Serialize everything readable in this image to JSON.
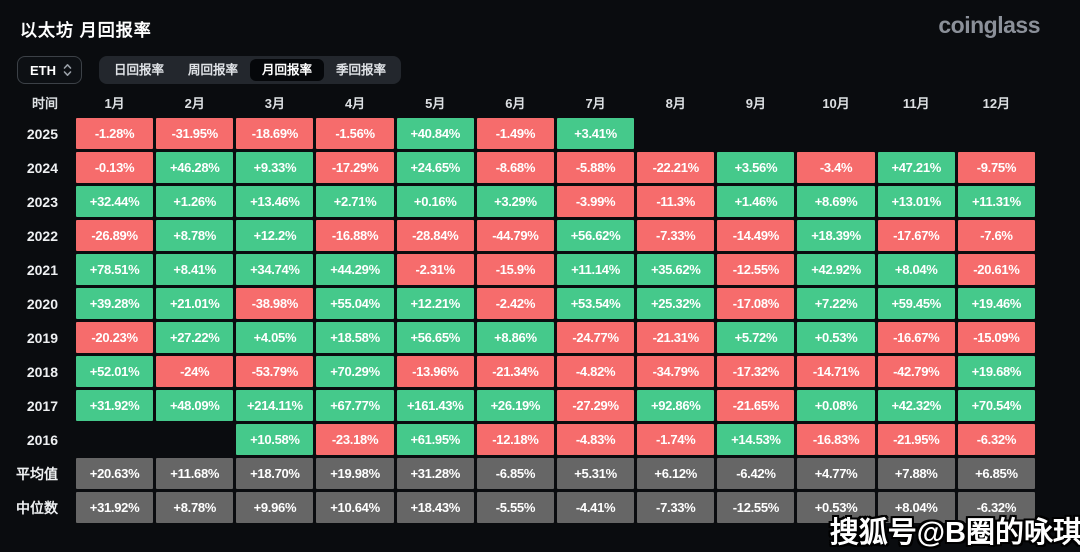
{
  "header": {
    "title": "以太坊 月回报率",
    "brand": "coinglass"
  },
  "controls": {
    "symbol_select": {
      "value": "ETH"
    },
    "tabs": [
      {
        "label": "日回报率",
        "active": false
      },
      {
        "label": "周回报率",
        "active": false
      },
      {
        "label": "月回报率",
        "active": true
      },
      {
        "label": "季回报率",
        "active": false
      }
    ]
  },
  "table": {
    "corner_header": "时间",
    "month_headers": [
      "1月",
      "2月",
      "3月",
      "4月",
      "5月",
      "6月",
      "7月",
      "8月",
      "9月",
      "10月",
      "11月",
      "12月"
    ],
    "rows": [
      {
        "label": "2025",
        "type": "year",
        "values": [
          "-1.28%",
          "-31.95%",
          "-18.69%",
          "-1.56%",
          "+40.84%",
          "-1.49%",
          "+3.41%",
          null,
          null,
          null,
          null,
          null
        ]
      },
      {
        "label": "2024",
        "type": "year",
        "values": [
          "-0.13%",
          "+46.28%",
          "+9.33%",
          "-17.29%",
          "+24.65%",
          "-8.68%",
          "-5.88%",
          "-22.21%",
          "+3.56%",
          "-3.4%",
          "+47.21%",
          "-9.75%"
        ]
      },
      {
        "label": "2023",
        "type": "year",
        "values": [
          "+32.44%",
          "+1.26%",
          "+13.46%",
          "+2.71%",
          "+0.16%",
          "+3.29%",
          "-3.99%",
          "-11.3%",
          "+1.46%",
          "+8.69%",
          "+13.01%",
          "+11.31%"
        ]
      },
      {
        "label": "2022",
        "type": "year",
        "values": [
          "-26.89%",
          "+8.78%",
          "+12.2%",
          "-16.88%",
          "-28.84%",
          "-44.79%",
          "+56.62%",
          "-7.33%",
          "-14.49%",
          "+18.39%",
          "-17.67%",
          "-7.6%"
        ]
      },
      {
        "label": "2021",
        "type": "year",
        "values": [
          "+78.51%",
          "+8.41%",
          "+34.74%",
          "+44.29%",
          "-2.31%",
          "-15.9%",
          "+11.14%",
          "+35.62%",
          "-12.55%",
          "+42.92%",
          "+8.04%",
          "-20.61%"
        ]
      },
      {
        "label": "2020",
        "type": "year",
        "values": [
          "+39.28%",
          "+21.01%",
          "-38.98%",
          "+55.04%",
          "+12.21%",
          "-2.42%",
          "+53.54%",
          "+25.32%",
          "-17.08%",
          "+7.22%",
          "+59.45%",
          "+19.46%"
        ]
      },
      {
        "label": "2019",
        "type": "year",
        "values": [
          "-20.23%",
          "+27.22%",
          "+4.05%",
          "+18.58%",
          "+56.65%",
          "+8.86%",
          "-24.77%",
          "-21.31%",
          "+5.72%",
          "+0.53%",
          "-16.67%",
          "-15.09%"
        ]
      },
      {
        "label": "2018",
        "type": "year",
        "values": [
          "+52.01%",
          "-24%",
          "-53.79%",
          "+70.29%",
          "-13.96%",
          "-21.34%",
          "-4.82%",
          "-34.79%",
          "-17.32%",
          "-14.71%",
          "-42.79%",
          "+19.68%"
        ]
      },
      {
        "label": "2017",
        "type": "year",
        "values": [
          "+31.92%",
          "+48.09%",
          "+214.11%",
          "+67.77%",
          "+161.43%",
          "+26.19%",
          "-27.29%",
          "+92.86%",
          "-21.65%",
          "+0.08%",
          "+42.32%",
          "+70.54%"
        ]
      },
      {
        "label": "2016",
        "type": "year",
        "values": [
          null,
          null,
          "+10.58%",
          "-23.18%",
          "+61.95%",
          "-12.18%",
          "-4.83%",
          "-1.74%",
          "+14.53%",
          "-16.83%",
          "-21.95%",
          "-6.32%"
        ]
      },
      {
        "label": "平均值",
        "type": "summary",
        "values": [
          "+20.63%",
          "+11.68%",
          "+18.70%",
          "+19.98%",
          "+31.28%",
          "-6.85%",
          "+5.31%",
          "+6.12%",
          "-6.42%",
          "+4.77%",
          "+7.88%",
          "+6.85%"
        ]
      },
      {
        "label": "中位数",
        "type": "summary",
        "values": [
          "+31.92%",
          "+8.78%",
          "+9.96%",
          "+10.64%",
          "+18.43%",
          "-5.55%",
          "-4.41%",
          "-7.33%",
          "-12.55%",
          "+0.53%",
          "+8.04%",
          "-6.32%"
        ]
      }
    ]
  },
  "watermark": "搜狐号@B圈的咏琪",
  "colors": {
    "positive": "#45c98b",
    "negative": "#f66c6c",
    "summary": "#666666"
  }
}
